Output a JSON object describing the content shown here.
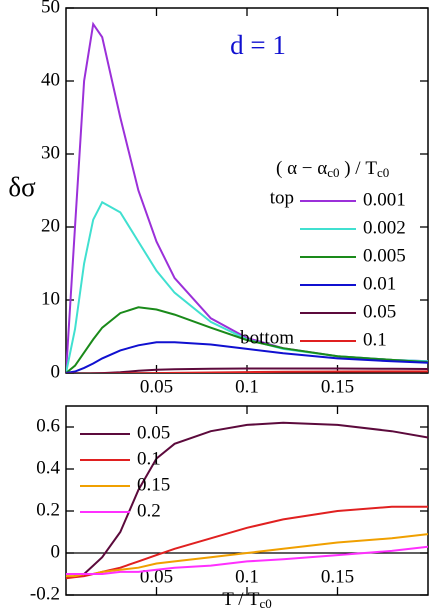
{
  "chart_data": [
    {
      "type": "line",
      "annotation": "d = 1",
      "ylabel": "δσ",
      "legend_title": [
        "( α − α",
        "c0",
        " ) / T",
        "c0"
      ],
      "legend_notes": [
        "top",
        "bottom"
      ],
      "x": [
        0,
        0.005,
        0.01,
        0.015,
        0.02,
        0.03,
        0.04,
        0.05,
        0.06,
        0.08,
        0.1,
        0.12,
        0.15,
        0.18,
        0.2
      ],
      "xlim": [
        0,
        0.2
      ],
      "xticks": [
        0.05,
        0.1,
        0.15
      ],
      "ylim": [
        0,
        50
      ],
      "yticks": [
        0,
        10,
        20,
        30,
        40,
        50
      ],
      "series": [
        {
          "name": "0.001",
          "color": "#9b30d9",
          "values": [
            0,
            20,
            40,
            47.8,
            46,
            35,
            25,
            18,
            13,
            7.5,
            4.8,
            3.4,
            2.3,
            1.8,
            1.6
          ]
        },
        {
          "name": "0.002",
          "color": "#40e0d0",
          "values": [
            0,
            6,
            15,
            21,
            23.4,
            22,
            18,
            14,
            11,
            7,
            4.6,
            3.3,
            2.3,
            1.8,
            1.6
          ]
        },
        {
          "name": "0.005",
          "color": "#1a8a1a",
          "values": [
            0,
            1,
            2.8,
            4.6,
            6.2,
            8.2,
            9,
            8.7,
            8,
            6.2,
            4.5,
            3.4,
            2.3,
            1.8,
            1.5
          ]
        },
        {
          "name": "0.01",
          "color": "#1010d0",
          "values": [
            0,
            0.2,
            0.7,
            1.3,
            2,
            3.1,
            3.8,
            4.2,
            4.2,
            3.9,
            3.3,
            2.7,
            2,
            1.6,
            1.4
          ]
        },
        {
          "name": "0.05",
          "color": "#5c0a3c",
          "values": [
            -0.12,
            -0.11,
            -0.1,
            -0.06,
            -0.02,
            0.1,
            0.3,
            0.45,
            0.52,
            0.58,
            0.61,
            0.62,
            0.61,
            0.58,
            0.55
          ]
        },
        {
          "name": "0.1",
          "color": "#e02020",
          "values": [
            -0.12,
            -0.115,
            -0.11,
            -0.1,
            -0.09,
            -0.07,
            -0.04,
            -0.01,
            0.02,
            0.07,
            0.12,
            0.16,
            0.2,
            0.22,
            0.22
          ]
        }
      ]
    },
    {
      "type": "line",
      "xlabel": [
        "T / T",
        "c0"
      ],
      "x": [
        0,
        0.005,
        0.01,
        0.015,
        0.02,
        0.03,
        0.04,
        0.05,
        0.06,
        0.08,
        0.1,
        0.12,
        0.15,
        0.18,
        0.2
      ],
      "xlim": [
        0,
        0.2
      ],
      "xticks": [
        0.05,
        0.1,
        0.15
      ],
      "ylim": [
        -0.2,
        0.7
      ],
      "yticks": [
        -0.2,
        0,
        0.2,
        0.4,
        0.6
      ],
      "series": [
        {
          "name": "0.05",
          "color": "#5c0a3c",
          "values": [
            -0.12,
            -0.11,
            -0.1,
            -0.06,
            -0.02,
            0.1,
            0.3,
            0.45,
            0.52,
            0.58,
            0.61,
            0.62,
            0.61,
            0.58,
            0.55
          ]
        },
        {
          "name": "0.1",
          "color": "#e02020",
          "values": [
            -0.12,
            -0.115,
            -0.11,
            -0.1,
            -0.09,
            -0.07,
            -0.04,
            -0.01,
            0.02,
            0.07,
            0.12,
            0.16,
            0.2,
            0.22,
            0.22
          ]
        },
        {
          "name": "0.15",
          "color": "#f0a000",
          "values": [
            -0.11,
            -0.11,
            -0.1,
            -0.1,
            -0.09,
            -0.08,
            -0.07,
            -0.05,
            -0.04,
            -0.02,
            0,
            0.02,
            0.05,
            0.07,
            0.09
          ]
        },
        {
          "name": "0.2",
          "color": "#ff30ff",
          "values": [
            -0.1,
            -0.1,
            -0.1,
            -0.1,
            -0.1,
            -0.09,
            -0.09,
            -0.08,
            -0.07,
            -0.06,
            -0.04,
            -0.03,
            -0.01,
            0.01,
            0.03
          ]
        }
      ]
    }
  ]
}
